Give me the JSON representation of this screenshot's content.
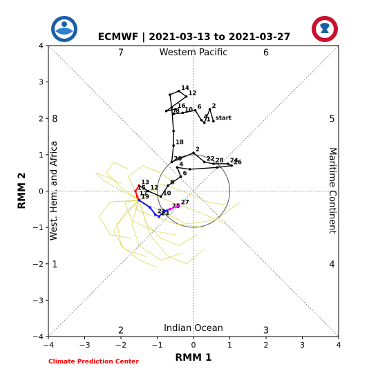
{
  "chart_data": {
    "type": "scatter",
    "title": "ECMWF | 2021-03-13 to 2021-03-27",
    "xlabel": "RMM 1",
    "ylabel": "RMM 2",
    "xlim": [
      -4,
      4
    ],
    "ylim": [
      -4,
      4
    ],
    "xticks": [
      "−4",
      "−3",
      "−2",
      "−1",
      "0",
      "1",
      "2",
      "3",
      "4"
    ],
    "yticks": [
      "−4",
      "−3",
      "−2",
      "−1",
      "0",
      "1",
      "2",
      "3",
      "4"
    ],
    "region_labels": {
      "top": "Western Pacific",
      "bottom": "Indian Ocean",
      "left": "West. Hem. and Africa",
      "right": "Maritime Continent"
    },
    "phase_labels": [
      {
        "text": "7",
        "x": -2.0,
        "y": 3.82
      },
      {
        "text": "6",
        "x": 2.0,
        "y": 3.82
      },
      {
        "text": "8",
        "x": -3.82,
        "y": 2.0
      },
      {
        "text": "5",
        "x": 3.82,
        "y": 2.0
      },
      {
        "text": "1",
        "x": -3.82,
        "y": -2.0
      },
      {
        "text": "4",
        "x": 3.82,
        "y": -2.0
      },
      {
        "text": "2",
        "x": -2.0,
        "y": -3.82
      },
      {
        "text": "3",
        "x": 2.0,
        "y": -3.82
      }
    ],
    "footer": "Climate Prediction Center",
    "colors": {
      "observed": "#000000",
      "ensemble": "#d4d43a",
      "forecast_red": "#ff0000",
      "forecast_blue": "#0000ff",
      "forecast_magenta": "#ff00ff",
      "footer": "#ff0000"
    },
    "observed": [
      {
        "x": 0.55,
        "y": 1.92,
        "label": "start"
      },
      {
        "x": 0.45,
        "y": 2.25,
        "label": "2"
      },
      {
        "x": 0.3,
        "y": 1.88,
        "label": "1"
      },
      {
        "x": 0.22,
        "y": 1.95,
        "label": "4"
      },
      {
        "x": 0.05,
        "y": 2.22,
        "label": "6"
      },
      {
        "x": -0.3,
        "y": 2.15,
        "label": "10"
      },
      {
        "x": -0.55,
        "y": 2.12,
        "label": "8"
      },
      {
        "x": -0.5,
        "y": 2.25,
        "label": "16"
      },
      {
        "x": -0.75,
        "y": 2.2,
        "label": ""
      },
      {
        "x": -0.2,
        "y": 2.6,
        "label": "12"
      },
      {
        "x": -0.4,
        "y": 2.75,
        "label": "14"
      },
      {
        "x": -0.65,
        "y": 2.65,
        "label": ""
      },
      {
        "x": -0.6,
        "y": 2.3,
        "label": ""
      },
      {
        "x": -0.55,
        "y": 1.65,
        "label": ""
      },
      {
        "x": -0.55,
        "y": 1.25,
        "label": "18"
      },
      {
        "x": -0.6,
        "y": 0.8,
        "label": "20"
      },
      {
        "x": 0.0,
        "y": 1.05,
        "label": "2"
      },
      {
        "x": 0.3,
        "y": 0.8,
        "label": "22"
      },
      {
        "x": 0.55,
        "y": 0.75,
        "label": "28"
      },
      {
        "x": 0.95,
        "y": 0.75,
        "label": "24"
      },
      {
        "x": 1.05,
        "y": 0.7,
        "label": "26"
      },
      {
        "x": 0.65,
        "y": 0.65,
        "label": ""
      },
      {
        "x": -0.1,
        "y": 0.6,
        "label": ""
      },
      {
        "x": -0.45,
        "y": 0.65,
        "label": "4"
      },
      {
        "x": -0.35,
        "y": 0.4,
        "label": "6"
      },
      {
        "x": -0.7,
        "y": 0.15,
        "label": "8"
      },
      {
        "x": -0.9,
        "y": -0.15,
        "label": "10"
      },
      {
        "x": -1.25,
        "y": 0.0,
        "label": "12"
      },
      {
        "x": -1.5,
        "y": 0.15,
        "label": "13"
      }
    ],
    "forecast_red": [
      {
        "x": -1.5,
        "y": 0.15,
        "label": ""
      },
      {
        "x": -1.6,
        "y": 0.0,
        "label": "15"
      },
      {
        "x": -1.55,
        "y": -0.15,
        "label": "17"
      },
      {
        "x": -1.5,
        "y": -0.25,
        "label": ""
      }
    ],
    "forecast_blue": [
      {
        "x": -1.5,
        "y": -0.25,
        "label": "19"
      },
      {
        "x": -1.2,
        "y": -0.45,
        "label": ""
      },
      {
        "x": -1.05,
        "y": -0.65,
        "label": "21"
      },
      {
        "x": -0.95,
        "y": -0.7,
        "label": "23"
      },
      {
        "x": -0.8,
        "y": -0.55,
        "label": ""
      },
      {
        "x": -0.65,
        "y": -0.5,
        "label": "25"
      }
    ],
    "forecast_magenta": [
      {
        "x": -0.65,
        "y": -0.5,
        "label": ""
      },
      {
        "x": -0.4,
        "y": -0.4,
        "label": "27"
      }
    ],
    "ensemble_members": [
      [
        [
          -1.5,
          -0.25
        ],
        [
          -1.9,
          -0.6
        ],
        [
          -2.2,
          -1.1
        ],
        [
          -1.9,
          -1.6
        ],
        [
          -1.3,
          -1.8
        ]
      ],
      [
        [
          -1.5,
          -0.25
        ],
        [
          -1.3,
          -0.9
        ],
        [
          -0.9,
          -1.3
        ],
        [
          -0.4,
          -1.5
        ],
        [
          0.1,
          -1.2
        ]
      ],
      [
        [
          -1.5,
          -0.25
        ],
        [
          -2.0,
          0.1
        ],
        [
          -2.4,
          0.5
        ],
        [
          -2.2,
          0.8
        ],
        [
          -1.8,
          0.6
        ]
      ],
      [
        [
          -1.5,
          -0.25
        ],
        [
          -1.1,
          -0.1
        ],
        [
          -0.6,
          -0.3
        ],
        [
          0.2,
          -0.6
        ],
        [
          0.9,
          -0.9
        ]
      ],
      [
        [
          -1.5,
          -0.25
        ],
        [
          -1.7,
          -0.9
        ],
        [
          -1.5,
          -1.5
        ],
        [
          -0.9,
          -1.9
        ],
        [
          -0.3,
          -1.7
        ]
      ],
      [
        [
          -1.5,
          -0.25
        ],
        [
          -2.3,
          -0.3
        ],
        [
          -2.6,
          -0.7
        ],
        [
          -2.3,
          -1.2
        ],
        [
          -1.7,
          -1.3
        ]
      ],
      [
        [
          -1.5,
          -0.25
        ],
        [
          -1.0,
          -0.5
        ],
        [
          -0.2,
          -0.9
        ],
        [
          0.6,
          -0.8
        ],
        [
          1.3,
          -0.3
        ]
      ],
      [
        [
          -1.5,
          -0.25
        ],
        [
          -1.8,
          0.4
        ],
        [
          -1.4,
          0.7
        ],
        [
          -0.9,
          0.5
        ],
        [
          -0.5,
          0.2
        ]
      ],
      [
        [
          -1.5,
          -0.25
        ],
        [
          -1.2,
          -1.2
        ],
        [
          -0.7,
          -1.8
        ],
        [
          -0.2,
          -2.0
        ],
        [
          0.3,
          -1.6
        ]
      ],
      [
        [
          -1.5,
          -0.25
        ],
        [
          -2.1,
          -0.9
        ],
        [
          -2.0,
          -1.5
        ],
        [
          -1.5,
          -1.9
        ],
        [
          -1.0,
          -2.1
        ]
      ],
      [
        [
          -1.5,
          -0.25
        ],
        [
          -0.9,
          0.2
        ],
        [
          -0.3,
          0.0
        ],
        [
          0.4,
          -0.3
        ],
        [
          1.0,
          -0.4
        ]
      ],
      [
        [
          -1.5,
          -0.25
        ],
        [
          -2.5,
          0.3
        ],
        [
          -2.7,
          0.5
        ],
        [
          -2.4,
          0.4
        ],
        [
          -2.0,
          0.2
        ]
      ],
      [
        [
          -1.5,
          -0.25
        ],
        [
          -1.6,
          -0.5
        ],
        [
          -1.1,
          -0.7
        ],
        [
          -0.5,
          -0.9
        ],
        [
          0.3,
          -1.0
        ]
      ],
      [
        [
          -1.5,
          -0.25
        ],
        [
          -1.9,
          -0.3
        ],
        [
          -1.7,
          -0.8
        ],
        [
          -1.1,
          -1.1
        ],
        [
          -0.5,
          -1.2
        ]
      ]
    ],
    "phase_circle_radius": 1,
    "grid": false
  }
}
